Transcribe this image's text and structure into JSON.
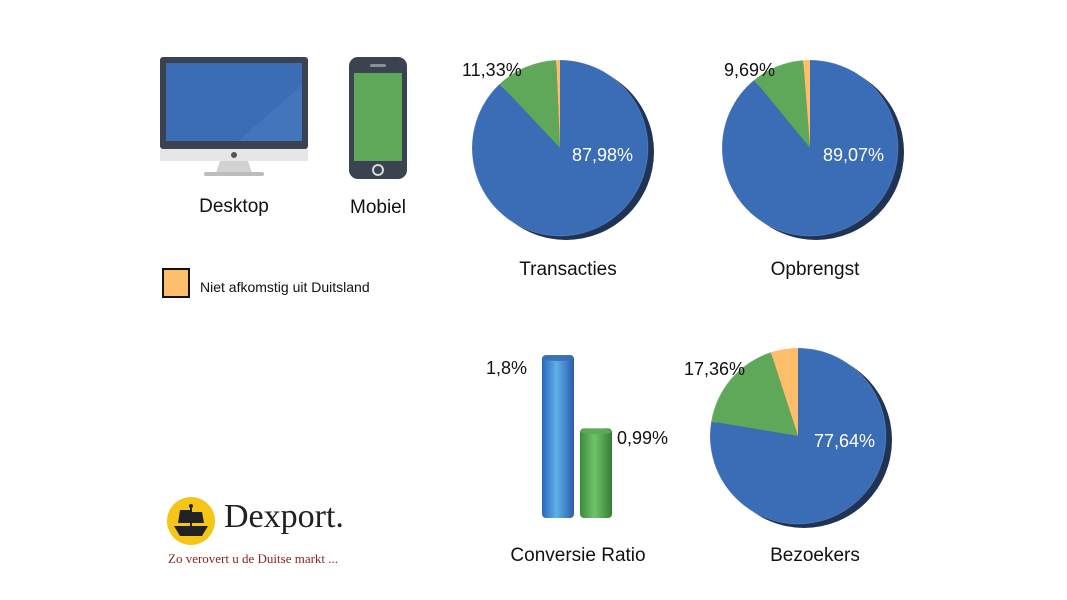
{
  "devices": {
    "desktop_label": "Desktop",
    "mobile_label": "Mobiel"
  },
  "legend": {
    "label": "Niet afkomstig uit Duitsland",
    "color": "#fdbd6a"
  },
  "colors": {
    "desktop": "#3a6db5",
    "mobile": "#5fa85a",
    "other": "#fdbd6a"
  },
  "brand": {
    "name": "Dexport.",
    "tagline": "Zo verovert u de Duitse markt ..."
  },
  "chart_data": [
    {
      "type": "pie",
      "title": "Transacties",
      "slices": [
        {
          "name": "Desktop",
          "value": 87.98,
          "label": "87,98%"
        },
        {
          "name": "Mobiel",
          "value": 11.33,
          "label": "11,33%"
        },
        {
          "name": "Niet afkomstig uit Duitsland",
          "value": 0.69,
          "label": ""
        }
      ]
    },
    {
      "type": "pie",
      "title": "Opbrengst",
      "slices": [
        {
          "name": "Desktop",
          "value": 89.07,
          "label": "89,07%"
        },
        {
          "name": "Mobiel",
          "value": 9.69,
          "label": "9,69%"
        },
        {
          "name": "Niet afkomstig uit Duitsland",
          "value": 1.24,
          "label": ""
        }
      ]
    },
    {
      "type": "bar",
      "title": "Conversie Ratio",
      "categories": [
        "Desktop",
        "Mobiel"
      ],
      "values": [
        1.8,
        0.99
      ],
      "labels": [
        "1,8%",
        "0,99%"
      ],
      "ylim": [
        0,
        1.8
      ]
    },
    {
      "type": "pie",
      "title": "Bezoekers",
      "slices": [
        {
          "name": "Desktop",
          "value": 77.64,
          "label": "77,64%"
        },
        {
          "name": "Mobiel",
          "value": 17.36,
          "label": "17,36%"
        },
        {
          "name": "Niet afkomstig uit Duitsland",
          "value": 5.0,
          "label": ""
        }
      ]
    }
  ]
}
